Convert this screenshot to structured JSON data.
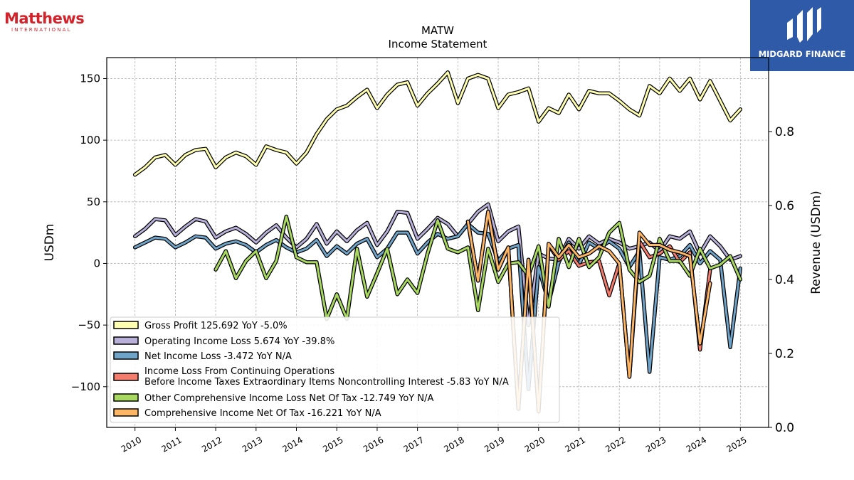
{
  "header": {
    "logo_left": {
      "name": "Matthews",
      "subtitle": "INTERNATIONAL"
    },
    "logo_right": {
      "name": "MIDGARD FINANCE"
    }
  },
  "chart_data": {
    "type": "line",
    "title": "MATW",
    "subtitle": "Income Statement",
    "ylabel": "USDm",
    "ylabel_right": "Revenue (USDm)",
    "ylim": [
      -133,
      167
    ],
    "ylim_right": [
      0,
      1
    ],
    "yticks": [
      -100,
      -50,
      0,
      50,
      100,
      150
    ],
    "yticks_right": [
      0.0,
      0.2,
      0.4,
      0.6,
      0.8
    ],
    "ytick_labels_right": [
      "0.0",
      "0.2",
      "0.4",
      "0.6",
      "0.8"
    ],
    "xlim": [
      2009.3,
      2025.7
    ],
    "xticks": [
      2010,
      2011,
      2012,
      2013,
      2014,
      2015,
      2016,
      2017,
      2018,
      2019,
      2020,
      2021,
      2022,
      2023,
      2024,
      2025
    ],
    "grid": true,
    "legend_position": "lower-left",
    "series": [
      {
        "name": "Gross Profit  125.692 YoY -5.0%",
        "color": "#ffffb0",
        "x_start": 2010,
        "step": 0.25,
        "values": [
          72,
          78,
          86,
          88,
          80,
          88,
          92,
          93,
          78,
          86,
          90,
          87,
          80,
          95,
          92,
          90,
          81,
          90,
          105,
          117,
          125,
          128,
          135,
          141,
          126,
          137,
          145,
          147,
          128,
          138,
          146,
          155,
          130,
          150,
          153,
          150,
          126,
          137,
          139,
          142,
          115,
          126,
          122,
          137,
          125,
          140,
          138,
          138,
          132,
          125,
          120,
          144,
          138,
          150,
          140,
          150,
          133,
          148,
          132,
          116,
          125
        ]
      },
      {
        "name": "Operating Income Loss  5.674 YoY -39.8%",
        "color": "#b8b0d8",
        "x_start": 2010,
        "step": 0.25,
        "values": [
          22,
          28,
          36,
          35,
          23,
          30,
          36,
          34,
          21,
          26,
          29,
          24,
          17,
          25,
          31,
          21,
          13,
          20,
          32,
          16,
          26,
          18,
          27,
          33,
          15,
          26,
          42,
          41,
          20,
          28,
          37,
          32,
          22,
          32,
          42,
          48,
          18,
          26,
          30,
          -50,
          8,
          4,
          3,
          20,
          12,
          22,
          16,
          20,
          17,
          12,
          14,
          17,
          10,
          22,
          20,
          26,
          8,
          22,
          14,
          3,
          6
        ]
      },
      {
        "name": "Net Income Loss  -3.472 YoY N/A",
        "color": "#6fa3c8",
        "x_start": 2010,
        "step": 0.25,
        "values": [
          13,
          17,
          21,
          20,
          13,
          17,
          22,
          21,
          12,
          16,
          18,
          15,
          9,
          15,
          19,
          13,
          9,
          12,
          19,
          6,
          14,
          8,
          16,
          20,
          5,
          12,
          25,
          25,
          8,
          17,
          24,
          20,
          22,
          32,
          25,
          24,
          2,
          12,
          15,
          -102,
          -3,
          -32,
          1,
          17,
          -1,
          17,
          12,
          18,
          12,
          -3,
          10,
          -88,
          5,
          3,
          6,
          15,
          0,
          10,
          3,
          -68,
          -4
        ]
      },
      {
        "name": "Income Loss From Continuing Operations\nBefore Income Taxes Extraordinary Items Noncontrolling Interest  -5.83 YoY N/A",
        "color": "#f47c6c",
        "x_start": 2018.25,
        "step": 0.25,
        "values": [
          34,
          -14,
          42,
          -5,
          13,
          -118,
          3,
          -120,
          15,
          3,
          10,
          -2,
          1,
          2,
          -26,
          0,
          -92,
          18,
          5,
          8,
          14,
          1,
          9,
          -70,
          -5
        ]
      },
      {
        "name": "Other Comprehensive Income Loss Net Of Tax  -12.749 YoY N/A",
        "color": "#a8d860",
        "x_start": 2012,
        "step": 0.25,
        "values": [
          -5,
          10,
          -12,
          2,
          10,
          -12,
          2,
          38,
          5,
          1,
          1,
          -45,
          -25,
          -45,
          12,
          -27,
          -8,
          12,
          -25,
          -13,
          -24,
          8,
          35,
          12,
          9,
          13,
          -38,
          12,
          -15,
          0,
          1,
          -10,
          14,
          -35,
          20,
          -3,
          20,
          -3,
          5,
          25,
          33,
          -5,
          -15,
          -10,
          20,
          2,
          2,
          -10,
          12,
          -4,
          -1,
          6,
          -13
        ]
      },
      {
        "name": "Comprehensive Income Net Of Tax  -16.221 YoY N/A",
        "color": "#fdb566",
        "x_start": 2018.25,
        "step": 0.25,
        "values": [
          34,
          -14,
          42,
          -5,
          13,
          -118,
          3,
          -120,
          16,
          5,
          15,
          5,
          8,
          14,
          10,
          0,
          -92,
          25,
          15,
          15,
          11,
          9,
          6,
          -65,
          -16
        ]
      }
    ]
  }
}
